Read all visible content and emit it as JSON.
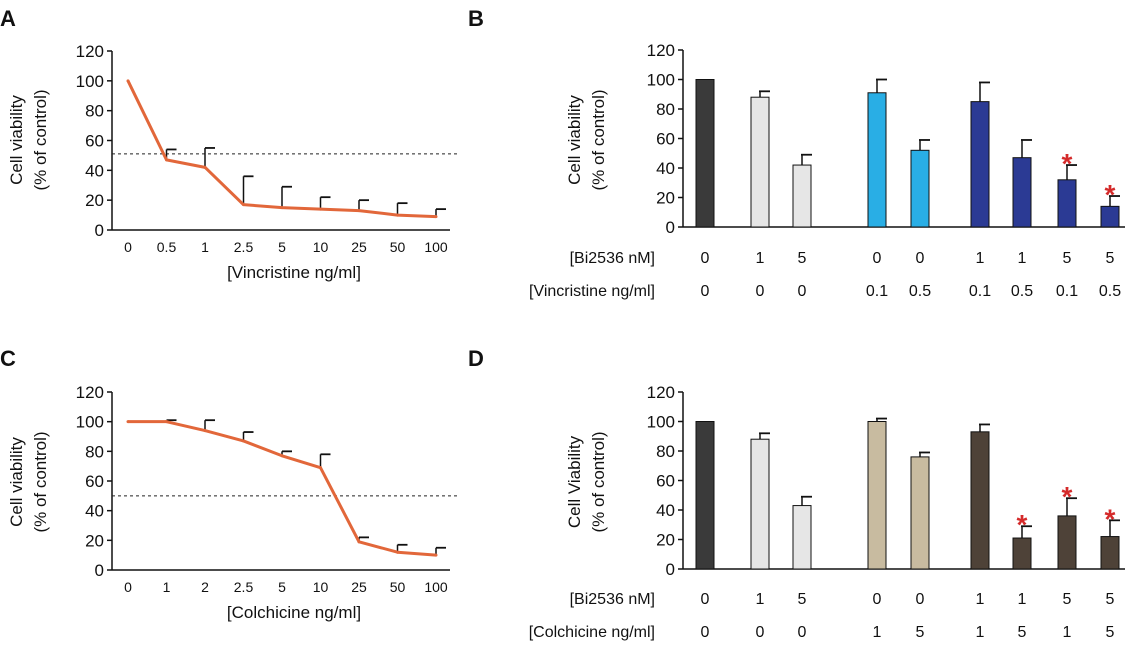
{
  "chart_data": [
    {
      "id": "A",
      "type": "line",
      "panel_label": "A",
      "ylabel": [
        "Cell viability",
        "(% of control)"
      ],
      "xlabel": "[Vincristine ng/ml]",
      "ylim": [
        0,
        120
      ],
      "yticks": [
        "0",
        "20",
        "40",
        "60",
        "80",
        "100",
        "120"
      ],
      "categories": [
        "0",
        "0.5",
        "1",
        "2.5",
        "5",
        "10",
        "25",
        "50",
        "100"
      ],
      "values": [
        100,
        47,
        42,
        17,
        15,
        14,
        13,
        10,
        9
      ],
      "errors": [
        0,
        7,
        13,
        19,
        14,
        8,
        7,
        8,
        5
      ],
      "reference_line": 51,
      "color": "#e2673a"
    },
    {
      "id": "C",
      "type": "line",
      "panel_label": "C",
      "ylabel": [
        "Cell viability",
        "(% of control)"
      ],
      "xlabel": "[Colchicine ng/ml]",
      "ylim": [
        0,
        120
      ],
      "yticks": [
        "0",
        "20",
        "40",
        "60",
        "80",
        "100",
        "120"
      ],
      "categories": [
        "0",
        "1",
        "2",
        "2.5",
        "5",
        "10",
        "25",
        "50",
        "100"
      ],
      "values": [
        100,
        100,
        94,
        87,
        77,
        69,
        19,
        12,
        10
      ],
      "errors": [
        0,
        1,
        7,
        6,
        3,
        9,
        3,
        5,
        5
      ],
      "reference_line": 50,
      "color": "#e2673a"
    },
    {
      "id": "B",
      "type": "bar",
      "panel_label": "B",
      "ylabel": [
        "Cell viability",
        "(% of control)"
      ],
      "ylim": [
        0,
        120
      ],
      "yticks": [
        "0",
        "20",
        "40",
        "60",
        "80",
        "100",
        "120"
      ],
      "row_labels": [
        "[Bi2536 nM]",
        "[Vincristine ng/ml]"
      ],
      "rows": [
        [
          "0",
          "1",
          "5",
          "0",
          "0",
          "1",
          "1",
          "5",
          "5"
        ],
        [
          "0",
          "0",
          "0",
          "0.1",
          "0.5",
          "0.1",
          "0.5",
          "0.1",
          "0.5"
        ]
      ],
      "values": [
        100,
        88,
        42,
        91,
        52,
        85,
        47,
        32,
        14
      ],
      "errors": [
        0,
        4,
        7,
        9,
        7,
        13,
        12,
        10,
        7
      ],
      "colors": [
        "#3a3a3a",
        "#e6e6e6",
        "#e6e6e6",
        "#29aee5",
        "#29aee5",
        "#2b3a94",
        "#2b3a94",
        "#2b3a94",
        "#2b3a94"
      ],
      "significant": [
        false,
        false,
        false,
        false,
        false,
        false,
        false,
        true,
        true
      ],
      "significance_mark": "*",
      "significance_color": "#d42a2a"
    },
    {
      "id": "D",
      "type": "bar",
      "panel_label": "D",
      "ylabel": [
        "Cell Viability",
        "(% of control)"
      ],
      "ylim": [
        0,
        120
      ],
      "yticks": [
        "0",
        "20",
        "40",
        "60",
        "80",
        "100",
        "120"
      ],
      "row_labels": [
        "[Bi2536 nM]",
        "[Colchicine ng/ml]"
      ],
      "rows": [
        [
          "0",
          "1",
          "5",
          "0",
          "0",
          "1",
          "1",
          "5",
          "5"
        ],
        [
          "0",
          "0",
          "0",
          "1",
          "5",
          "1",
          "5",
          "1",
          "5"
        ]
      ],
      "values": [
        100,
        88,
        43,
        100,
        76,
        93,
        21,
        36,
        22
      ],
      "errors": [
        0,
        4,
        6,
        2,
        3,
        5,
        8,
        12,
        11
      ],
      "colors": [
        "#3a3a3a",
        "#e6e6e6",
        "#e6e6e6",
        "#c8bba0",
        "#c8bba0",
        "#4e4238",
        "#4e4238",
        "#4e4238",
        "#4e4238"
      ],
      "significant": [
        false,
        false,
        false,
        false,
        false,
        false,
        true,
        true,
        true
      ],
      "significance_mark": "*",
      "significance_color": "#d42a2a"
    }
  ]
}
